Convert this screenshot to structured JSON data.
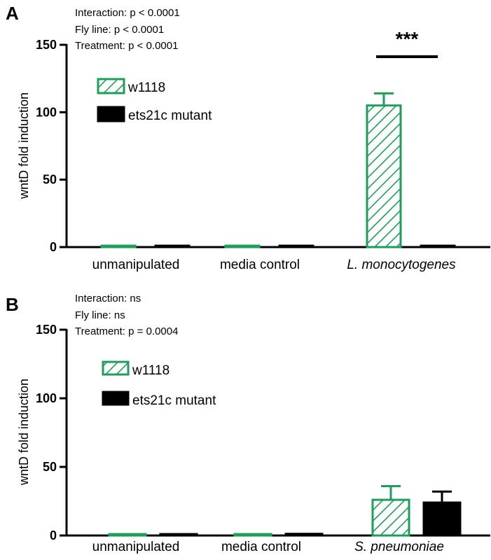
{
  "chart_data": [
    {
      "type": "bar",
      "panel_label": "A",
      "stats": [
        "Interaction: p < 0.0001",
        "Fly line: p < 0.0001",
        "Treatment: p < 0.0001"
      ],
      "ylabel": "wntD fold induction",
      "ylim": [
        0,
        150
      ],
      "yticks": [
        0,
        50,
        100,
        150
      ],
      "categories": [
        "unmanipulated",
        "media control",
        "L. monocytogenes"
      ],
      "italic_categories": [
        false,
        false,
        true
      ],
      "series": [
        {
          "name": "w1118",
          "style": "hatched",
          "color": "#1f9e5a",
          "values": [
            0.5,
            0.7,
            105
          ],
          "errors": [
            0,
            0,
            9
          ]
        },
        {
          "name": "ets21c mutant",
          "style": "solid",
          "color": "#000000",
          "values": [
            0.3,
            0.4,
            1.0
          ],
          "errors": [
            0,
            0,
            0
          ]
        }
      ],
      "significance": {
        "label": "***",
        "category_index": 2
      }
    },
    {
      "type": "bar",
      "panel_label": "B",
      "stats": [
        "Interaction: ns",
        "Fly line: ns",
        "Treatment: p = 0.0004"
      ],
      "ylabel": "wntD fold induction",
      "ylim": [
        0,
        150
      ],
      "yticks": [
        0,
        50,
        100,
        150
      ],
      "categories": [
        "unmanipulated",
        "media control",
        "S. pneumoniae"
      ],
      "italic_categories": [
        false,
        false,
        true
      ],
      "series": [
        {
          "name": "w1118",
          "style": "hatched",
          "color": "#1f9e5a",
          "values": [
            0.3,
            0.3,
            26
          ],
          "errors": [
            0,
            0,
            10
          ]
        },
        {
          "name": "ets21c mutant",
          "style": "solid",
          "color": "#000000",
          "values": [
            0.8,
            1.2,
            24
          ],
          "errors": [
            0,
            0,
            8
          ]
        }
      ]
    }
  ]
}
